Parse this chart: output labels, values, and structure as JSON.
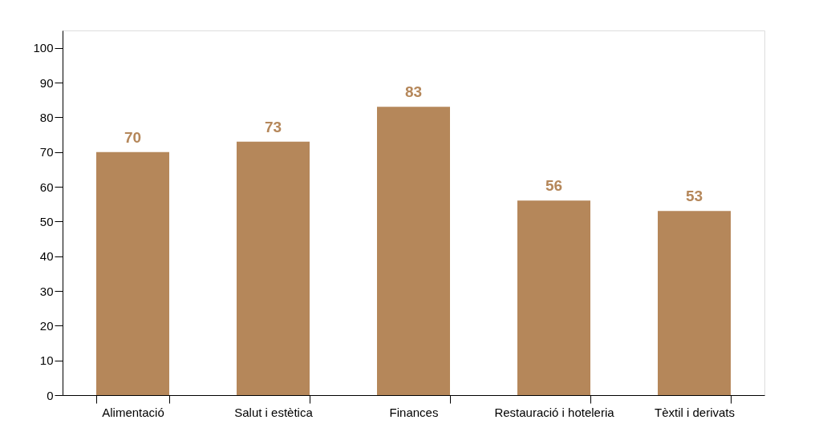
{
  "chart_data": {
    "type": "bar",
    "categories": [
      "Alimentació",
      "Salut i estètica",
      "Finances",
      "Restauració i hoteleria",
      "Tèxtil i derivats"
    ],
    "values": [
      70,
      73,
      83,
      56,
      53
    ],
    "color": "#b5875a",
    "ylim": [
      0,
      105
    ],
    "yticks": [
      0,
      10,
      20,
      30,
      40,
      50,
      60,
      70,
      80,
      90,
      100
    ],
    "grid": false,
    "data_labels": true
  }
}
